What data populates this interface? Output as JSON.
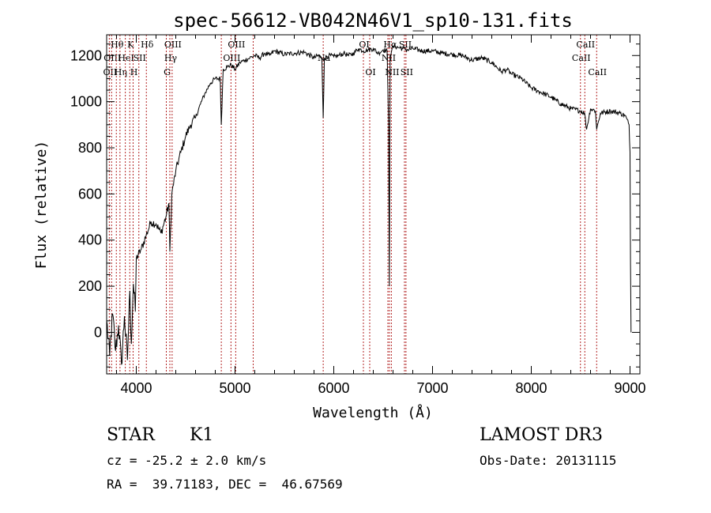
{
  "chart_data": {
    "type": "line",
    "title": "spec-56612-VB042N46V1_sp10-131.fits",
    "xlabel": "Wavelength (Å)",
    "ylabel": "Flux (relative)",
    "xlim": [
      3700,
      9100
    ],
    "ylim": [
      -180,
      1290
    ],
    "xticks": [
      4000,
      5000,
      6000,
      7000,
      8000,
      9000
    ],
    "xtick_labels": [
      "4000",
      "5000",
      "6000",
      "7000",
      "8000",
      "9000"
    ],
    "yticks": [
      0,
      200,
      400,
      600,
      800,
      1000,
      1200
    ],
    "ytick_labels": [
      "0",
      "200",
      "400",
      "600",
      "800",
      "1000",
      "1200"
    ],
    "series": [
      {
        "name": "flux",
        "x": [
          3700,
          3730,
          3760,
          3790,
          3820,
          3850,
          3880,
          3910,
          3935,
          3950,
          3970,
          3990,
          4000,
          4050,
          4100,
          4150,
          4200,
          4250,
          4300,
          4330,
          4340,
          4360,
          4400,
          4450,
          4500,
          4550,
          4600,
          4650,
          4700,
          4750,
          4800,
          4850,
          4861,
          4880,
          4920,
          4960,
          5000,
          5050,
          5100,
          5150,
          5200,
          5250,
          5300,
          5350,
          5400,
          5500,
          5600,
          5700,
          5800,
          5850,
          5880,
          5893,
          5905,
          5950,
          6000,
          6050,
          6100,
          6150,
          6200,
          6250,
          6300,
          6350,
          6400,
          6450,
          6500,
          6540,
          6555,
          6563,
          6570,
          6590,
          6620,
          6650,
          6700,
          6750,
          6800,
          6900,
          7000,
          7100,
          7200,
          7300,
          7400,
          7500,
          7600,
          7700,
          7750,
          7800,
          7900,
          8000,
          8100,
          8200,
          8300,
          8400,
          8500,
          8540,
          8560,
          8600,
          8650,
          8662,
          8700,
          8800,
          8900,
          8950,
          8990,
          9000,
          9005,
          9010
        ],
        "y": [
          50,
          -100,
          80,
          -80,
          30,
          -140,
          70,
          -120,
          180,
          -50,
          210,
          90,
          320,
          360,
          420,
          480,
          470,
          430,
          500,
          560,
          350,
          600,
          700,
          780,
          850,
          900,
          930,
          990,
          1040,
          1080,
          1100,
          1100,
          900,
          1140,
          1150,
          1160,
          1140,
          1170,
          1180,
          1190,
          1200,
          1190,
          1210,
          1200,
          1220,
          1205,
          1210,
          1215,
          1190,
          1200,
          1180,
          930,
          1190,
          1200,
          1195,
          1200,
          1210,
          1200,
          1210,
          1230,
          1220,
          1225,
          1230,
          1210,
          1225,
          1220,
          900,
          200,
          1200,
          1230,
          1240,
          1235,
          1230,
          1225,
          1230,
          1220,
          1220,
          1210,
          1205,
          1200,
          1180,
          1190,
          1170,
          1130,
          1140,
          1120,
          1100,
          1060,
          1040,
          1020,
          990,
          970,
          960,
          950,
          880,
          970,
          960,
          880,
          950,
          960,
          950,
          940,
          900,
          780,
          300,
          0
        ]
      }
    ],
    "line_markers": [
      {
        "wavelength": 3727,
        "label": "OII",
        "row": 2
      },
      {
        "wavelength": 3750,
        "label": "OIII",
        "row": 1
      },
      {
        "wavelength": 3798,
        "label": "Hθ",
        "row": 0
      },
      {
        "wavelength": 3835,
        "label": "Hη",
        "row": 2
      },
      {
        "wavelength": 3889,
        "label": "HeI",
        "row": 1
      },
      {
        "wavelength": 3934,
        "label": "K",
        "row": 0
      },
      {
        "wavelength": 3968,
        "label": "H",
        "row": 2
      },
      {
        "wavelength": 4026,
        "label": "SII",
        "row": 1
      },
      {
        "wavelength": 4102,
        "label": "Hδ",
        "row": 0
      },
      {
        "wavelength": 4304,
        "label": "G",
        "row": 2
      },
      {
        "wavelength": 4340,
        "label": "Hγ",
        "row": 1
      },
      {
        "wavelength": 4363,
        "label": "OIII",
        "row": 0
      },
      {
        "wavelength": 4861,
        "label": "",
        "row": 0
      },
      {
        "wavelength": 4959,
        "label": "OIII",
        "row": 1
      },
      {
        "wavelength": 5007,
        "label": "OIII",
        "row": 0
      },
      {
        "wavelength": 5184,
        "label": "",
        "row": 0
      },
      {
        "wavelength": 5893,
        "label": "Na",
        "row": 1
      },
      {
        "wavelength": 6300,
        "label": "OI",
        "row": 0
      },
      {
        "wavelength": 6364,
        "label": "OI",
        "row": 2
      },
      {
        "wavelength": 6548,
        "label": "NII",
        "row": 1
      },
      {
        "wavelength": 6563,
        "label": "Hα",
        "row": 0
      },
      {
        "wavelength": 6583,
        "label": "NII",
        "row": 2
      },
      {
        "wavelength": 6716,
        "label": "SII",
        "row": 0
      },
      {
        "wavelength": 6731,
        "label": "SII",
        "row": 2
      },
      {
        "wavelength": 8498,
        "label": "CaII",
        "row": 1
      },
      {
        "wavelength": 8542,
        "label": "CaII",
        "row": 0
      },
      {
        "wavelength": 8662,
        "label": "CaII",
        "row": 2
      }
    ]
  },
  "info": {
    "object_class": "STAR",
    "subclass": "K1",
    "survey": "LAMOST DR3",
    "cz": "cz = -25.2 ± 2.0 km/s",
    "obs_date": "Obs-Date: 20131115",
    "coords": "RA =  39.71183, DEC =  46.67569"
  }
}
